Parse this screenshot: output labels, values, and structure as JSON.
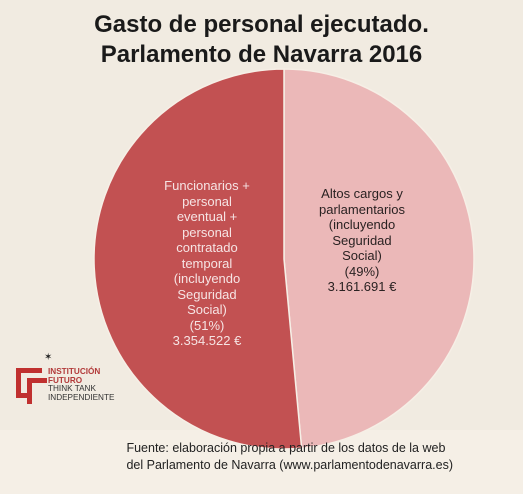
{
  "title_lines": [
    "Gasto de personal ejecutado.",
    "Parlamento de Navarra 2016"
  ],
  "colors": {
    "slice_left": "#c25152",
    "slice_right": "#ebb8b8",
    "label_left": "#f6e4e4",
    "label_right": "#2a2222",
    "logo_red": "#c0302f"
  },
  "chart_data": {
    "type": "pie",
    "title": "Gasto de personal ejecutado. Parlamento de Navarra 2016",
    "currency": "€",
    "slices": [
      {
        "label": "Funcionarios + personal eventual + personal contratado temporal (incluyendo Seguridad Social)",
        "value": 3354522,
        "percent": 51,
        "label_lines": [
          "Funcionarios +",
          "personal",
          "eventual +",
          "personal",
          "contratado",
          "temporal",
          "(incluyendo",
          "Seguridad",
          "Social)",
          "(51%)",
          "3.354.522 €"
        ]
      },
      {
        "label": "Altos cargos y parlamentarios (incluyendo Seguridad Social)",
        "value": 3161691,
        "percent": 49,
        "label_lines": [
          "Altos cargos y",
          "parlamentarios",
          "(incluyendo",
          "Seguridad",
          "Social)",
          "(49%)",
          "3.161.691 €"
        ]
      }
    ]
  },
  "logo": {
    "lines": [
      "INSTITUCIÓN",
      "FUTURO",
      "THINK TANK",
      "INDEPENDIENTE"
    ]
  },
  "source_lines": [
    "Fuente: elaboración propia a partir de los datos de la web",
    "del Parlamento de Navarra (www.parlamentodenavarra.es)"
  ]
}
